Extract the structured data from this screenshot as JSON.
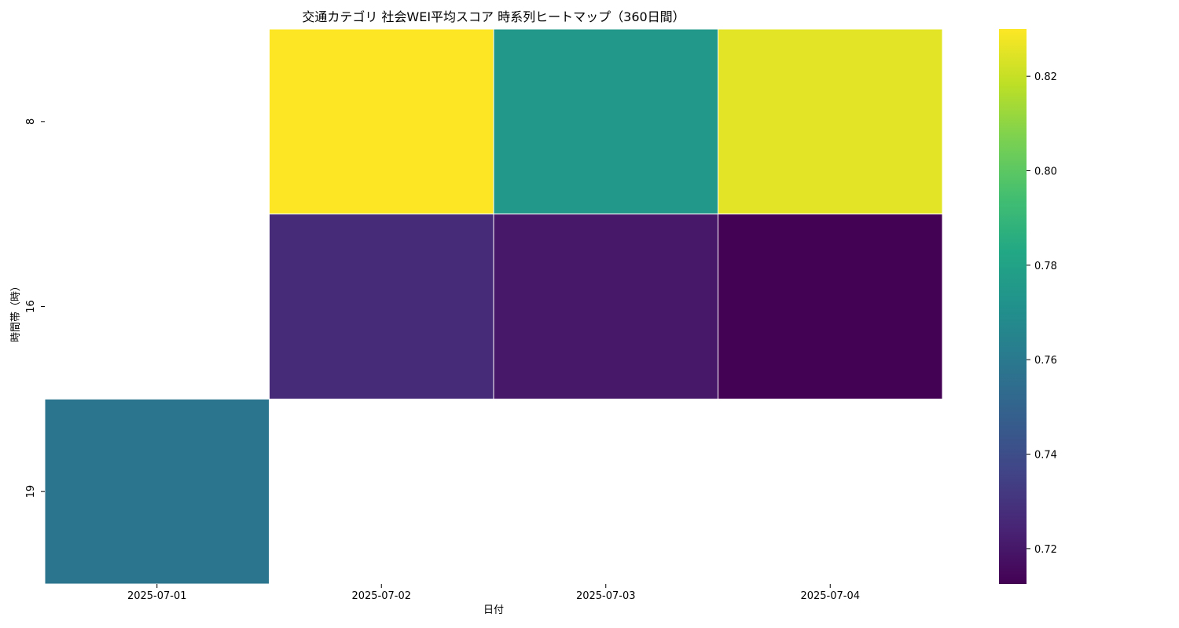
{
  "chart_data": {
    "type": "heatmap",
    "title": "交通カテゴリ 社会WEI平均スコア 時系列ヒートマップ（360日間）",
    "xlabel": "日付",
    "ylabel": "時間帯（時）",
    "x": [
      "2025-07-01",
      "2025-07-02",
      "2025-07-03",
      "2025-07-04"
    ],
    "y": [
      "8",
      "16",
      "19"
    ],
    "values": [
      [
        null,
        0.83,
        0.775,
        0.825
      ],
      [
        null,
        0.727,
        0.72,
        0.713
      ],
      [
        0.758,
        null,
        null,
        null
      ]
    ],
    "colormap": "viridis",
    "colorbar": {
      "range": [
        0.7125,
        0.83
      ],
      "ticks": [
        0.72,
        0.74,
        0.76,
        0.78,
        0.8,
        0.82
      ],
      "tick_labels": [
        "0.72",
        "0.74",
        "0.76",
        "0.78",
        "0.80",
        "0.82"
      ]
    },
    "missing_color": "#ffffff",
    "cell_border_color": "#ffffff"
  }
}
